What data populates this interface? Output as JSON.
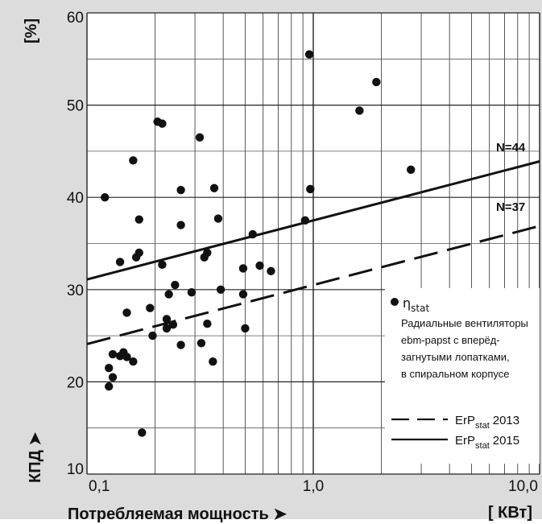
{
  "page": {
    "x_axis_label": "Потребляемая мощность ➤",
    "x_unit": "[ КВт]",
    "y_axis_label": "КПД ➤",
    "y_unit": "[%]"
  },
  "legend": {
    "points_label": "η",
    "points_sub": "stat",
    "description_lines": [
      "Радиальные вентиляторы",
      "ebm-papst с  вперёд-",
      "загнутыми лопатками,",
      "в спиральном корпусе"
    ],
    "line_2013_label": "ErP",
    "line_2013_sub": "stat",
    "line_2013_year": "2013",
    "line_2015_label": "ErP",
    "line_2015_sub": "stat",
    "line_2015_year": "2015"
  },
  "annotations": {
    "n44": "N=44",
    "n37": "N=37"
  },
  "colors": {
    "background": "#dcdcdc",
    "plot_background": "#ffffff",
    "ink": "#111111"
  },
  "chart_data": {
    "type": "scatter",
    "x_scale": "log",
    "xlim": [
      0.1,
      10.0
    ],
    "ylim": [
      10,
      60
    ],
    "x_ticks": [
      0.1,
      1.0,
      10.0
    ],
    "x_tick_labels": [
      "0,1",
      "1,0",
      "10,0"
    ],
    "y_ticks": [
      10,
      20,
      30,
      40,
      50,
      60
    ],
    "y_tick_labels": [
      "10",
      "20",
      "30",
      "40",
      "50",
      "60"
    ],
    "grid": true,
    "legend_position": "bottom-right",
    "series": [
      {
        "name": "ηstat",
        "kind": "points",
        "points": [
          [
            0.12,
            40.0
          ],
          [
            0.125,
            21.5
          ],
          [
            0.125,
            19.5
          ],
          [
            0.13,
            23.0
          ],
          [
            0.13,
            20.5
          ],
          [
            0.14,
            33.0
          ],
          [
            0.14,
            22.8
          ],
          [
            0.145,
            23.2
          ],
          [
            0.15,
            22.7
          ],
          [
            0.15,
            27.5
          ],
          [
            0.16,
            44.0
          ],
          [
            0.16,
            22.2
          ],
          [
            0.165,
            33.5
          ],
          [
            0.17,
            37.6
          ],
          [
            0.17,
            34.0
          ],
          [
            0.175,
            14.5
          ],
          [
            0.19,
            28.0
          ],
          [
            0.195,
            25.0
          ],
          [
            0.205,
            48.2
          ],
          [
            0.215,
            48.0
          ],
          [
            0.215,
            32.7
          ],
          [
            0.225,
            26.8
          ],
          [
            0.225,
            25.8
          ],
          [
            0.23,
            29.5
          ],
          [
            0.24,
            26.2
          ],
          [
            0.245,
            30.5
          ],
          [
            0.26,
            40.8
          ],
          [
            0.26,
            37.0
          ],
          [
            0.26,
            24.0
          ],
          [
            0.29,
            29.7
          ],
          [
            0.315,
            46.5
          ],
          [
            0.32,
            24.2
          ],
          [
            0.33,
            33.5
          ],
          [
            0.34,
            34.0
          ],
          [
            0.34,
            26.3
          ],
          [
            0.36,
            22.2
          ],
          [
            0.365,
            41.0
          ],
          [
            0.38,
            37.7
          ],
          [
            0.39,
            30.0
          ],
          [
            0.49,
            32.3
          ],
          [
            0.49,
            29.5
          ],
          [
            0.5,
            25.8
          ],
          [
            0.54,
            36.0
          ],
          [
            0.58,
            32.6
          ],
          [
            0.65,
            32.0
          ],
          [
            0.92,
            37.5
          ],
          [
            0.96,
            55.5
          ],
          [
            0.97,
            40.9
          ],
          [
            1.6,
            49.4
          ],
          [
            1.9,
            52.5
          ],
          [
            2.7,
            43.0
          ]
        ]
      },
      {
        "name": "ErPstat 2015",
        "kind": "line",
        "style": "solid",
        "points": [
          [
            0.1,
            31.1
          ],
          [
            10.0,
            43.9
          ]
        ]
      },
      {
        "name": "ErPstat 2013",
        "kind": "line",
        "style": "dashed",
        "points": [
          [
            0.1,
            24.1
          ],
          [
            10.0,
            36.9
          ]
        ]
      }
    ]
  }
}
